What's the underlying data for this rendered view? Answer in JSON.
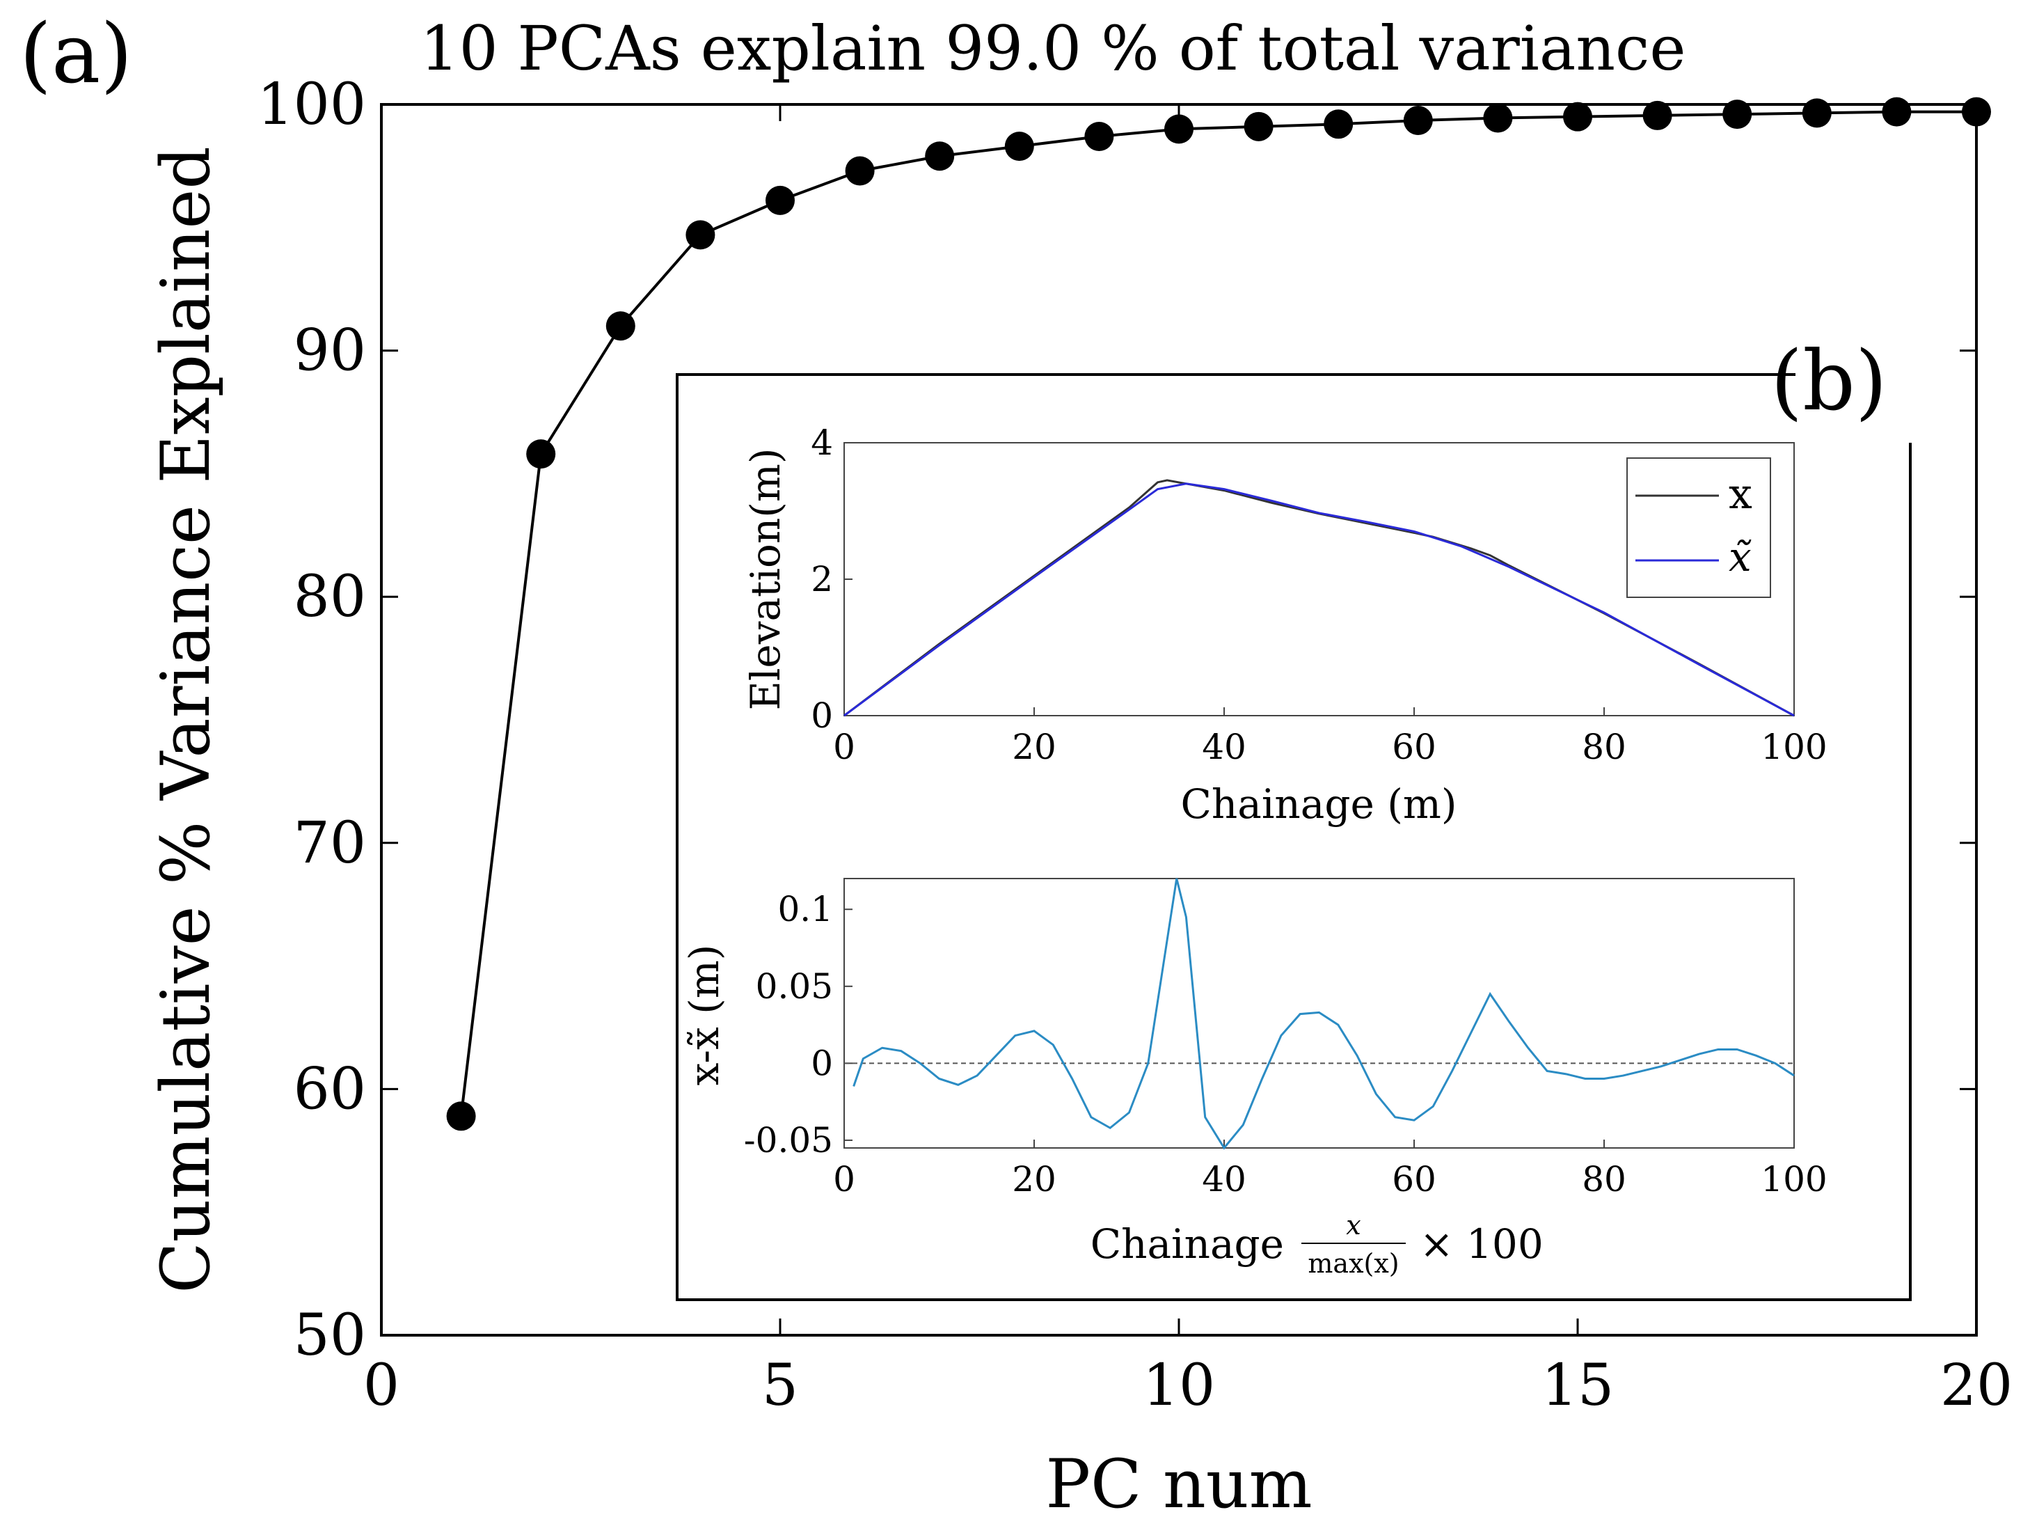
{
  "panel_labels": {
    "a": "(a)",
    "b": "(b)"
  },
  "colors": {
    "main": "#000000",
    "x_line": "#333333",
    "xtilde_line": "#2a2ad8",
    "error_line": "#2b8cc4"
  },
  "chart_data": [
    {
      "type": "line",
      "title": "10 PCAs explain  99.0 % of total variance",
      "xlabel": "PC num",
      "ylabel": "Cumulative % Variance Explained",
      "xlim": [
        0,
        20
      ],
      "ylim": [
        50,
        100
      ],
      "xticks": [
        0,
        5,
        10,
        15,
        20
      ],
      "yticks": [
        50,
        60,
        70,
        80,
        90,
        100
      ],
      "x": [
        1,
        2,
        3,
        4,
        5,
        6,
        7,
        8,
        9,
        10,
        11,
        12,
        13,
        14,
        15,
        16,
        17,
        18,
        19,
        20
      ],
      "values": [
        58.9,
        85.8,
        91.0,
        94.7,
        96.1,
        97.3,
        97.9,
        98.3,
        98.7,
        99.0,
        99.1,
        99.2,
        99.35,
        99.45,
        99.5,
        99.55,
        99.6,
        99.65,
        99.7,
        99.7
      ],
      "markers": "filled-circle",
      "grid": false
    },
    {
      "type": "line",
      "title": "",
      "xlabel": "Chainage (m)",
      "ylabel": "Elevation(m)",
      "xlim": [
        0,
        100
      ],
      "ylim": [
        0,
        4
      ],
      "xticks": [
        0,
        20,
        40,
        60,
        80,
        100
      ],
      "yticks": [
        0,
        2,
        4
      ],
      "legend_position": "top-right",
      "series": [
        {
          "name": "x",
          "x": [
            0,
            10,
            20,
            30,
            33,
            34,
            36,
            40,
            45,
            50,
            55,
            60,
            62,
            66,
            68,
            70,
            80,
            90,
            100
          ],
          "values": [
            0,
            1.05,
            2.05,
            3.05,
            3.42,
            3.45,
            3.4,
            3.3,
            3.12,
            2.96,
            2.82,
            2.68,
            2.62,
            2.45,
            2.35,
            2.2,
            1.5,
            0.76,
            0
          ]
        },
        {
          "name": "x̃",
          "x": [
            0,
            10,
            20,
            30,
            33,
            36,
            40,
            45,
            50,
            55,
            60,
            65,
            68,
            70,
            80,
            90,
            100
          ],
          "values": [
            0,
            1.03,
            2.03,
            3.02,
            3.32,
            3.4,
            3.32,
            3.15,
            2.97,
            2.84,
            2.7,
            2.48,
            2.3,
            2.18,
            1.51,
            0.75,
            0
          ]
        }
      ],
      "grid": false
    },
    {
      "type": "line",
      "title": "",
      "xlabel_main": "Chainage",
      "xlabel_frac_num": "x",
      "xlabel_frac_den": "max(x)",
      "xlabel_suffix": "× 100",
      "ylabel": "x-x̃ (m)",
      "xlim": [
        0,
        100
      ],
      "ylim": [
        -0.055,
        0.12
      ],
      "xticks": [
        0,
        20,
        40,
        60,
        80,
        100
      ],
      "yticks": [
        -0.05,
        0,
        0.05,
        0.1
      ],
      "ytick_labels": [
        "-0.05",
        "0",
        "0.05",
        "0.1"
      ],
      "zero_line": true,
      "x": [
        1,
        2,
        4,
        6,
        8,
        10,
        12,
        14,
        16,
        18,
        20,
        22,
        24,
        26,
        28,
        30,
        32,
        34,
        35,
        36,
        38,
        40,
        42,
        44,
        46,
        48,
        50,
        52,
        54,
        56,
        58,
        60,
        62,
        64,
        66,
        68,
        70,
        72,
        74,
        75,
        76,
        78,
        80,
        82,
        84,
        86,
        88,
        90,
        92,
        94,
        96,
        98,
        100
      ],
      "values": [
        -0.015,
        0.003,
        0.01,
        0.008,
        0.0,
        -0.01,
        -0.014,
        -0.008,
        0.005,
        0.018,
        0.021,
        0.012,
        -0.01,
        -0.035,
        -0.042,
        -0.032,
        0.0,
        0.08,
        0.12,
        0.095,
        -0.035,
        -0.055,
        -0.04,
        -0.01,
        0.018,
        0.032,
        0.033,
        0.025,
        0.005,
        -0.02,
        -0.035,
        -0.037,
        -0.028,
        -0.005,
        0.02,
        0.045,
        0.027,
        0.01,
        -0.005,
        -0.006,
        -0.007,
        -0.01,
        -0.01,
        -0.008,
        -0.005,
        -0.002,
        0.002,
        0.006,
        0.009,
        0.009,
        0.005,
        0.0,
        -0.008
      ],
      "grid": false
    }
  ]
}
